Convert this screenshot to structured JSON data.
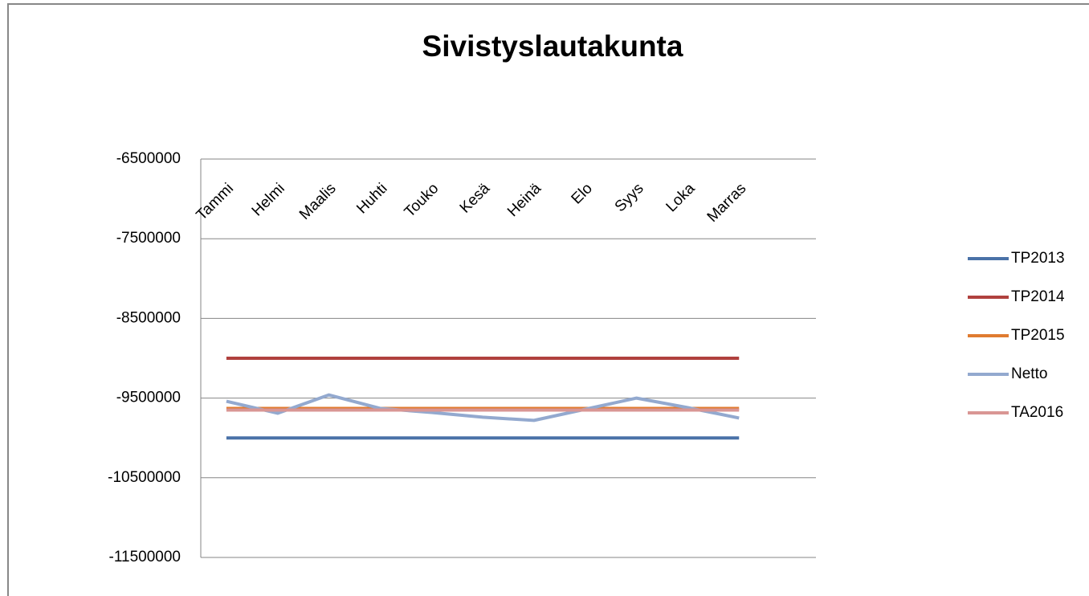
{
  "chart_data": {
    "type": "line",
    "title": "Sivistyslautakunta",
    "categories": [
      "Tammi",
      "Helmi",
      "Maalis",
      "Huhti",
      "Touko",
      "Kesä",
      "Heinä",
      "Elo",
      "Syys",
      "Loka",
      "Marras",
      null
    ],
    "series": [
      {
        "name": "TP2013",
        "color": "#4a72a8",
        "values": [
          -10000000,
          -10000000,
          -10000000,
          -10000000,
          -10000000,
          -10000000,
          -10000000,
          -10000000,
          -10000000,
          -10000000,
          -10000000,
          null
        ]
      },
      {
        "name": "TP2014",
        "color": "#b0413e",
        "values": [
          -9000000,
          -9000000,
          -9000000,
          -9000000,
          -9000000,
          -9000000,
          -9000000,
          -9000000,
          -9000000,
          -9000000,
          -9000000,
          null
        ]
      },
      {
        "name": "TP2015",
        "color": "#e07b30",
        "values": [
          -9630000,
          -9630000,
          -9630000,
          -9630000,
          -9630000,
          -9630000,
          -9630000,
          -9630000,
          -9630000,
          -9630000,
          -9630000,
          null
        ]
      },
      {
        "name": "Netto",
        "color": "#93a9cf",
        "values": [
          -9540000,
          -9690000,
          -9460000,
          -9630000,
          -9680000,
          -9740000,
          -9780000,
          -9640000,
          -9500000,
          -9620000,
          -9750000,
          null
        ]
      },
      {
        "name": "TA2016",
        "color": "#d99694",
        "values": [
          -9650000,
          -9650000,
          -9650000,
          -9650000,
          -9650000,
          -9650000,
          -9650000,
          -9650000,
          -9650000,
          -9650000,
          -9650000,
          null
        ]
      }
    ],
    "ylim": [
      -11500000,
      -6500000
    ],
    "yticks": [
      -11500000,
      -10500000,
      -9500000,
      -8500000,
      -7500000,
      -6500000
    ],
    "grid": true,
    "legend": "right"
  }
}
